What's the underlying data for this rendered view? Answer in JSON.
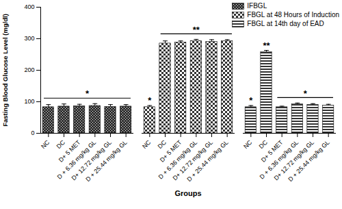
{
  "chart_data": {
    "type": "bar",
    "y_label": "Fasting Blood Glucose Level (mg/dl)",
    "x_label": "Groups",
    "categories": [
      "NC",
      "DC",
      "D+ 5 MET",
      "D + 6.36 mg/kg GL",
      "D+ 12.72 mg/kg GL",
      "D + 25.44 mg/kg GL"
    ],
    "series": [
      {
        "name": "IFBGL",
        "color": "#333333",
        "values": [
          83,
          85,
          86,
          87,
          84,
          85
        ],
        "errors": [
          8,
          8,
          6,
          7,
          7,
          6
        ]
      },
      {
        "name": "FBGL at 48 Hours of Induction",
        "color": "#333333",
        "values": [
          83,
          285,
          288,
          293,
          290,
          292
        ],
        "errors": [
          5,
          8,
          5,
          5,
          7,
          5
        ]
      },
      {
        "name": "FBGL at 14th day of EAD",
        "color": "#333333",
        "values": [
          83,
          258,
          83,
          92,
          90,
          88
        ],
        "errors": [
          5,
          5,
          3,
          4,
          4,
          4
        ]
      }
    ],
    "annotations": [
      {
        "series": "IFBGL",
        "from": "NC",
        "to": "D + 25.44 mg/kg GL",
        "text": "*"
      },
      {
        "series": "FBGL at 48 Hours of Induction",
        "from": "NC",
        "to": "NC",
        "text": "*"
      },
      {
        "series": "FBGL at 48 Hours of Induction",
        "from": "DC",
        "to": "D + 25.44 mg/kg GL",
        "text": "**"
      },
      {
        "series": "FBGL at 14th day of EAD",
        "from": "NC",
        "to": "NC",
        "text": "*"
      },
      {
        "series": "FBGL at 14th day of EAD",
        "from": "DC",
        "to": "DC",
        "text": "**"
      },
      {
        "series": "FBGL at 14th day of EAD",
        "from": "D+ 5 MET",
        "to": "D + 25.44 mg/kg GL",
        "text": "*"
      }
    ],
    "ylim": [
      0,
      400
    ],
    "yticks": [
      0,
      100,
      200,
      300,
      400
    ],
    "grid": false,
    "legend": "top-right"
  }
}
